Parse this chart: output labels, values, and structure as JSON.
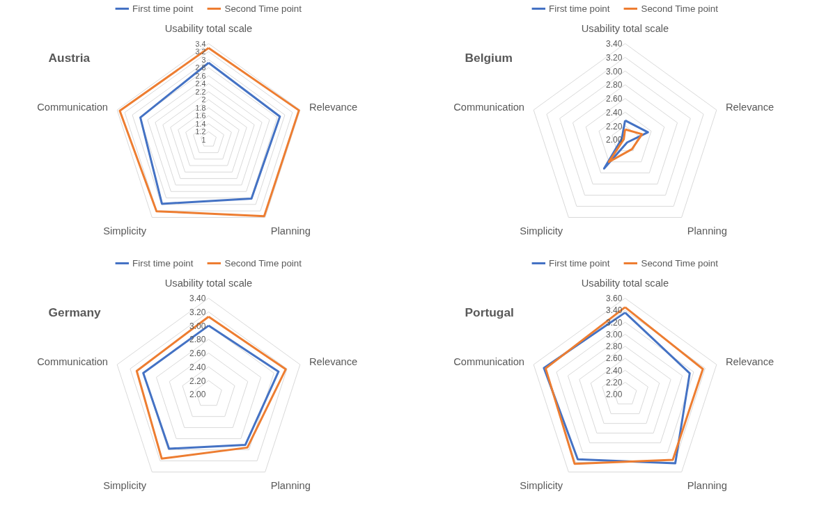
{
  "chart_data": [
    {
      "type": "radar",
      "title": "Austria",
      "categories": [
        "Usability total scale",
        "Relevance",
        "Planning",
        "Simplicity",
        "Communication"
      ],
      "ylim": [
        1,
        3.4
      ],
      "yticks": [
        1,
        1.2,
        1.4,
        1.6,
        1.8,
        2,
        2.2,
        2.4,
        2.6,
        2.8,
        3,
        3.2,
        3.4
      ],
      "grid": true,
      "legend": "top",
      "series": [
        {
          "name": "First time point",
          "color": "#4472c4",
          "values": [
            2.92,
            2.87,
            2.82,
            2.98,
            2.79
          ]
        },
        {
          "name": "Second Time point",
          "color": "#ed7d31",
          "values": [
            3.29,
            3.37,
            3.36,
            3.21,
            3.33
          ]
        }
      ]
    },
    {
      "type": "radar",
      "title": "Belgium",
      "categories": [
        "Usability total scale",
        "Relevance",
        "Planning",
        "Simplicity",
        "Communication"
      ],
      "ylim": [
        2,
        3.4
      ],
      "yticks": [
        {
          "value": 2,
          "label": "2.00"
        },
        {
          "value": 2.2,
          "label": "2.20"
        },
        {
          "value": 2.4,
          "label": "2.40"
        },
        {
          "value": 2.6,
          "label": "2.60"
        },
        {
          "value": 2.8,
          "label": "2.80"
        },
        {
          "value": 3,
          "label": "3.00"
        },
        {
          "value": 3.2,
          "label": "3.20"
        },
        {
          "value": 3.4,
          "label": "3.40"
        }
      ],
      "grid": true,
      "legend": "top",
      "series": [
        {
          "name": "First time point",
          "color": "#4472c4",
          "values": [
            2.28,
            2.35,
            2.05,
            2.52,
            2.05
          ]
        },
        {
          "name": "Second Time point",
          "color": "#ed7d31",
          "values": [
            2.15,
            2.26,
            2.17,
            2.4,
            2.02
          ]
        }
      ]
    },
    {
      "type": "radar",
      "title": "Germany",
      "categories": [
        "Usability total scale",
        "Relevance",
        "Planning",
        "Simplicity",
        "Communication"
      ],
      "ylim": [
        2,
        3.4
      ],
      "yticks": [
        {
          "value": 2,
          "label": "2.00"
        },
        {
          "value": 2.2,
          "label": "2.20"
        },
        {
          "value": 2.4,
          "label": "2.40"
        },
        {
          "value": 2.6,
          "label": "2.60"
        },
        {
          "value": 2.8,
          "label": "2.80"
        },
        {
          "value": 3,
          "label": "3.00"
        },
        {
          "value": 3.2,
          "label": "3.20"
        },
        {
          "value": 3.4,
          "label": "3.40"
        }
      ],
      "grid": true,
      "legend": "top",
      "series": [
        {
          "name": "First time point",
          "color": "#4472c4",
          "values": [
            3.0,
            3.07,
            2.91,
            2.98,
            3.0
          ]
        },
        {
          "name": "Second Time point",
          "color": "#ed7d31",
          "values": [
            3.13,
            3.18,
            2.96,
            3.16,
            3.1
          ]
        }
      ]
    },
    {
      "type": "radar",
      "title": "Portugal",
      "categories": [
        "Usability total scale",
        "Relevance",
        "Planning",
        "Simplicity",
        "Communication"
      ],
      "ylim": [
        2,
        3.6
      ],
      "yticks": [
        {
          "value": 2,
          "label": "2.00"
        },
        {
          "value": 2.2,
          "label": "2.20"
        },
        {
          "value": 2.4,
          "label": "2.40"
        },
        {
          "value": 2.6,
          "label": "2.60"
        },
        {
          "value": 2.8,
          "label": "2.80"
        },
        {
          "value": 3,
          "label": "3.00"
        },
        {
          "value": 3.2,
          "label": "3.20"
        },
        {
          "value": 3.4,
          "label": "3.40"
        },
        {
          "value": 3.6,
          "label": "3.60"
        }
      ],
      "grid": true,
      "legend": "top",
      "series": [
        {
          "name": "First time point",
          "color": "#4472c4",
          "values": [
            3.36,
            3.13,
            3.42,
            3.34,
            3.42
          ]
        },
        {
          "name": "Second Time point",
          "color": "#ed7d31",
          "values": [
            3.45,
            3.36,
            3.35,
            3.43,
            3.39
          ]
        }
      ]
    }
  ]
}
